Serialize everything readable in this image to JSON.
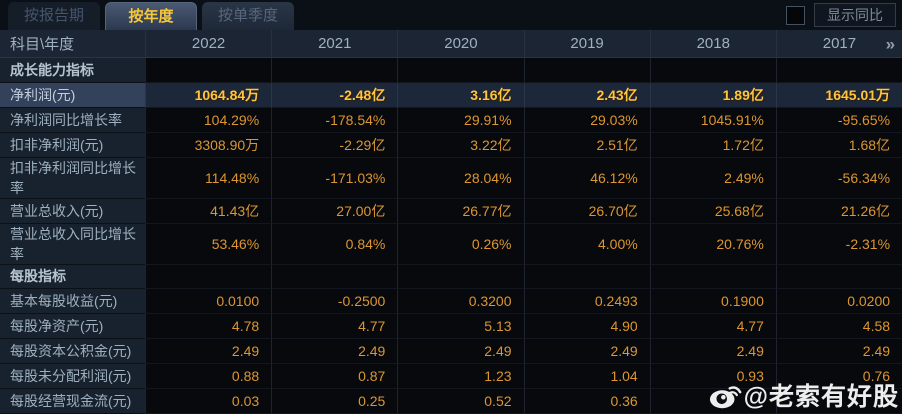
{
  "tabs": [
    {
      "label": "按报告期",
      "active": false
    },
    {
      "label": "按年度",
      "active": true
    },
    {
      "label": "按单季度",
      "active": false
    }
  ],
  "controls": {
    "checkbox_checked": false,
    "show_yoy_label": "显示同比"
  },
  "table": {
    "corner_label": "科目\\年度",
    "years": [
      "2022",
      "2021",
      "2020",
      "2019",
      "2018",
      "2017"
    ],
    "more_icon": "»",
    "rows": [
      {
        "section": true,
        "label": "成长能力指标",
        "values": [
          "",
          "",
          "",
          "",
          "",
          ""
        ]
      },
      {
        "label": "净利润(元)",
        "highlight": true,
        "values": [
          "1064.84万",
          "-2.48亿",
          "3.16亿",
          "2.43亿",
          "1.89亿",
          "1645.01万"
        ]
      },
      {
        "label": "净利润同比增长率",
        "values": [
          "104.29%",
          "-178.54%",
          "29.91%",
          "29.03%",
          "1045.91%",
          "-95.65%"
        ]
      },
      {
        "label": "扣非净利润(元)",
        "values": [
          "3308.90万",
          "-2.29亿",
          "3.22亿",
          "2.51亿",
          "1.72亿",
          "1.68亿"
        ]
      },
      {
        "label": "扣非净利润同比增长率",
        "values": [
          "114.48%",
          "-171.03%",
          "28.04%",
          "46.12%",
          "2.49%",
          "-56.34%"
        ]
      },
      {
        "label": "营业总收入(元)",
        "values": [
          "41.43亿",
          "27.00亿",
          "26.77亿",
          "26.70亿",
          "25.68亿",
          "21.26亿"
        ]
      },
      {
        "label": "营业总收入同比增长率",
        "values": [
          "53.46%",
          "0.84%",
          "0.26%",
          "4.00%",
          "20.76%",
          "-2.31%"
        ]
      },
      {
        "section": true,
        "label": "每股指标",
        "values": [
          "",
          "",
          "",
          "",
          "",
          ""
        ]
      },
      {
        "label": "基本每股收益(元)",
        "values": [
          "0.0100",
          "-0.2500",
          "0.3200",
          "0.2493",
          "0.1900",
          "0.0200"
        ]
      },
      {
        "label": "每股净资产(元)",
        "values": [
          "4.78",
          "4.77",
          "5.13",
          "4.90",
          "4.77",
          "4.58"
        ]
      },
      {
        "label": "每股资本公积金(元)",
        "values": [
          "2.49",
          "2.49",
          "2.49",
          "2.49",
          "2.49",
          "2.49"
        ]
      },
      {
        "label": "每股未分配利润(元)",
        "values": [
          "0.88",
          "0.87",
          "1.23",
          "1.04",
          "0.93",
          "0.76"
        ]
      },
      {
        "label": "每股经营现金流(元)",
        "values": [
          "0.03",
          "0.25",
          "0.52",
          "0.36",
          "",
          ""
        ]
      }
    ]
  },
  "watermark": {
    "text": "@老索有好股",
    "icon": "weibo-icon"
  },
  "colors": {
    "value_gold": "#dc9632",
    "highlight_gold": "#ffc53d",
    "active_tab_text": "#f8c83a",
    "header_text": "#9fb0c0",
    "label_bg": "#18222f",
    "highlight_row_bg": "#1c2839"
  }
}
